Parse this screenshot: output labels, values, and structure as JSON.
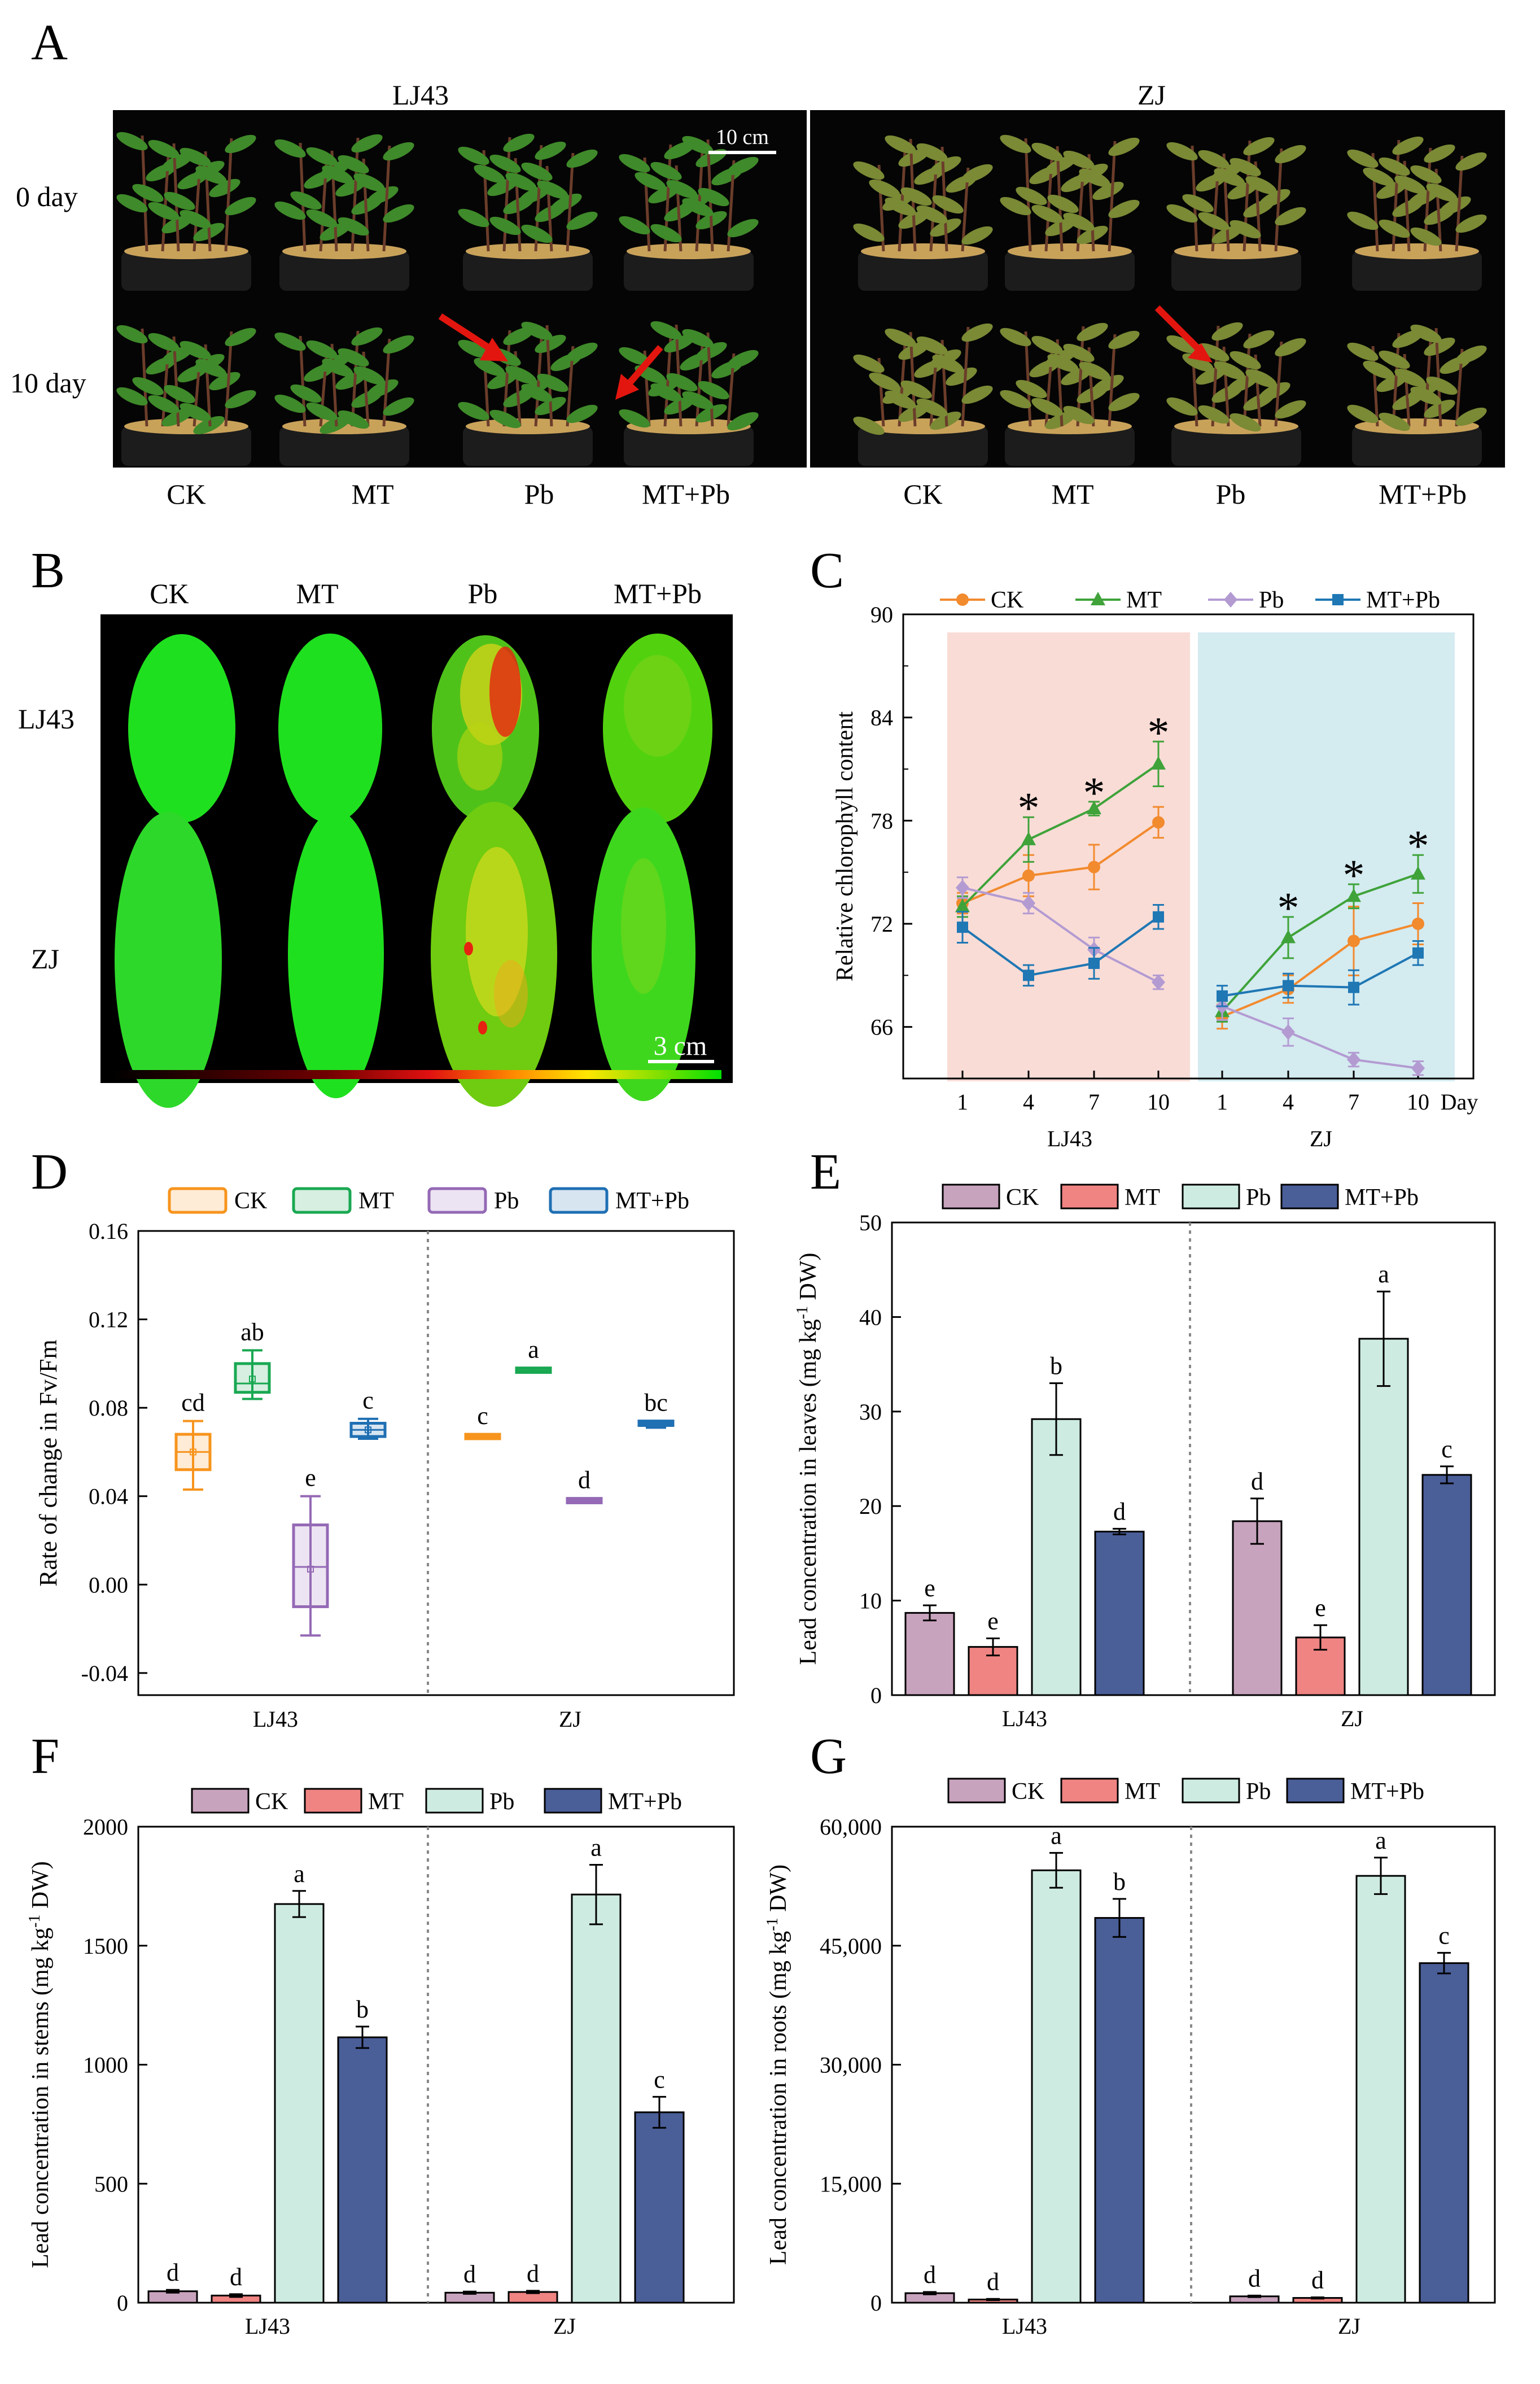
{
  "panel_letters": {
    "a": "A",
    "b": "B",
    "c": "C",
    "d": "D",
    "e": "E",
    "f": "F",
    "g": "G"
  },
  "panel_a": {
    "groups": [
      "LJ43",
      "ZJ"
    ],
    "rows": [
      "0 day",
      "10 day"
    ],
    "treatments": [
      "CK",
      "MT",
      "Pb",
      "MT+Pb"
    ],
    "scale_bar": "10 cm"
  },
  "panel_b": {
    "treatments": [
      "CK",
      "MT",
      "Pb",
      "MT+Pb"
    ],
    "rows": [
      "LJ43",
      "ZJ"
    ],
    "scale_bar": "3 cm"
  },
  "colors": {
    "ck": "#c8a3bd",
    "mt": "#ef8482",
    "pb": "#cdebe1",
    "mtpb": "#4a5e98",
    "line_ck": "#f28a2e",
    "line_mt": "#3fa33a",
    "line_pb": "#b39bd2",
    "line_mtpb": "#1f77b4",
    "box_ck": "#f7941d",
    "box_mt": "#19a852",
    "box_pb": "#9469b5",
    "box_mtpb": "#1f6fb3",
    "shade_lj43": "#f9dcd6",
    "shade_zj": "#d4ebf0"
  },
  "chart_data": [
    {
      "id": "C",
      "type": "line",
      "ylabel": "Relative chlorophyll content",
      "xlabel": "Day",
      "ylim": [
        63,
        90
      ],
      "yticks": [
        66,
        72,
        78,
        84,
        90
      ],
      "groups": [
        "LJ43",
        "ZJ"
      ],
      "x": [
        1,
        4,
        7,
        10
      ],
      "significance": "*",
      "legend": [
        "CK",
        "MT",
        "Pb",
        "MT+Pb"
      ],
      "series": [
        {
          "name": "CK",
          "LJ43": [
            73.2,
            74.8,
            75.3,
            77.9
          ],
          "LJ43_err": [
            0.6,
            1.2,
            1.3,
            0.9
          ],
          "ZJ": [
            66.6,
            68.2,
            71.0,
            72.0
          ],
          "ZJ_err": [
            0.7,
            0.8,
            2.0,
            1.2
          ]
        },
        {
          "name": "MT",
          "LJ43": [
            73.0,
            76.9,
            78.7,
            81.3
          ],
          "LJ43_err": [
            0.6,
            1.3,
            0.4,
            1.3
          ],
          "ZJ": [
            66.9,
            71.2,
            73.6,
            74.9
          ],
          "ZJ_err": [
            0.6,
            1.2,
            0.7,
            1.1
          ]
        },
        {
          "name": "Pb",
          "LJ43": [
            74.1,
            73.2,
            70.5,
            68.6
          ],
          "LJ43_err": [
            0.6,
            0.6,
            0.7,
            0.4
          ],
          "ZJ": [
            67.2,
            65.7,
            64.1,
            63.6
          ],
          "ZJ_err": [
            0.8,
            0.8,
            0.4,
            0.4
          ]
        },
        {
          "name": "MT+Pb",
          "LJ43": [
            71.8,
            69.0,
            69.7,
            72.4
          ],
          "LJ43_err": [
            0.9,
            0.6,
            0.9,
            0.7
          ],
          "ZJ": [
            67.8,
            68.4,
            68.3,
            70.3
          ],
          "ZJ_err": [
            0.6,
            0.7,
            1.0,
            0.7
          ]
        }
      ],
      "significant_points": {
        "LJ43": [
          4,
          7,
          10
        ],
        "ZJ": [
          4,
          7,
          10
        ]
      }
    },
    {
      "id": "D",
      "type": "box",
      "ylabel": "Rate of change in Fv/Fm",
      "ylim": [
        -0.05,
        0.16
      ],
      "yticks": [
        -0.04,
        0.0,
        0.04,
        0.08,
        0.12,
        0.16
      ],
      "ytick_labels": [
        "-0.04",
        "0.00",
        "0.04",
        "0.08",
        "0.12",
        "0.16"
      ],
      "groups": [
        "LJ43",
        "ZJ"
      ],
      "legend": [
        "CK",
        "MT",
        "Pb",
        "MT+Pb"
      ],
      "boxes": [
        {
          "group": "LJ43",
          "name": "CK",
          "min": 0.043,
          "q1": 0.052,
          "median": 0.06,
          "q3": 0.068,
          "max": 0.074,
          "mean": 0.06,
          "letter": "cd"
        },
        {
          "group": "LJ43",
          "name": "MT",
          "min": 0.084,
          "q1": 0.087,
          "median": 0.091,
          "q3": 0.1,
          "max": 0.106,
          "mean": 0.093,
          "letter": "ab"
        },
        {
          "group": "LJ43",
          "name": "Pb",
          "min": -0.023,
          "q1": -0.01,
          "median": 0.008,
          "q3": 0.027,
          "max": 0.04,
          "mean": 0.007,
          "letter": "e"
        },
        {
          "group": "LJ43",
          "name": "MT+Pb",
          "min": 0.066,
          "q1": 0.067,
          "median": 0.07,
          "q3": 0.073,
          "max": 0.075,
          "mean": 0.07,
          "letter": "c"
        },
        {
          "group": "ZJ",
          "name": "CK",
          "min": 0.066,
          "q1": 0.066,
          "median": 0.067,
          "q3": 0.068,
          "max": 0.068,
          "mean": 0.067,
          "letter": "c"
        },
        {
          "group": "ZJ",
          "name": "MT",
          "min": 0.096,
          "q1": 0.096,
          "median": 0.097,
          "q3": 0.098,
          "max": 0.098,
          "mean": 0.097,
          "letter": "a"
        },
        {
          "group": "ZJ",
          "name": "Pb",
          "min": 0.037,
          "q1": 0.037,
          "median": 0.038,
          "q3": 0.039,
          "max": 0.039,
          "mean": 0.038,
          "letter": "d"
        },
        {
          "group": "ZJ",
          "name": "MT+Pb",
          "min": 0.071,
          "q1": 0.072,
          "median": 0.073,
          "q3": 0.074,
          "max": 0.074,
          "mean": 0.073,
          "letter": "bc"
        }
      ]
    },
    {
      "id": "E",
      "type": "bar",
      "ylabel_main": "Lead concentration in leaves (mg kg",
      "ylabel_sup": "-1",
      "ylabel_end": " DW)",
      "ylim": [
        0,
        50
      ],
      "yticks": [
        0,
        10,
        20,
        30,
        40,
        50
      ],
      "ytick_labels": [
        "0",
        "10",
        "20",
        "30",
        "40",
        "50"
      ],
      "categories": [
        "LJ43",
        "ZJ"
      ],
      "legend": [
        "CK",
        "MT",
        "Pb",
        "MT+Pb"
      ],
      "series": [
        {
          "name": "CK",
          "values": [
            8.7,
            18.4
          ],
          "errors": [
            0.8,
            2.4
          ],
          "letters": [
            "e",
            "d"
          ]
        },
        {
          "name": "MT",
          "values": [
            5.1,
            6.1
          ],
          "errors": [
            0.9,
            1.3
          ],
          "letters": [
            "e",
            "e"
          ]
        },
        {
          "name": "Pb",
          "values": [
            29.2,
            37.7
          ],
          "errors": [
            3.8,
            5.0
          ],
          "letters": [
            "b",
            "a"
          ]
        },
        {
          "name": "MT+Pb",
          "values": [
            17.3,
            23.3
          ],
          "errors": [
            0.3,
            0.9
          ],
          "letters": [
            "d",
            "c"
          ]
        }
      ]
    },
    {
      "id": "F",
      "type": "bar",
      "ylabel_main": "Lead concentration in stems (mg kg",
      "ylabel_sup": "-1",
      "ylabel_end": " DW)",
      "ylim": [
        0,
        2000
      ],
      "yticks": [
        0,
        500,
        1000,
        1500,
        2000
      ],
      "ytick_labels": [
        "0",
        "500",
        "1000",
        "1500",
        "2000"
      ],
      "categories": [
        "LJ43",
        "ZJ"
      ],
      "legend": [
        "CK",
        "MT",
        "Pb",
        "MT+Pb"
      ],
      "series": [
        {
          "name": "CK",
          "values": [
            48,
            42
          ],
          "errors": [
            6,
            5
          ],
          "letters": [
            "d",
            "d"
          ]
        },
        {
          "name": "MT",
          "values": [
            30,
            45
          ],
          "errors": [
            6,
            5
          ],
          "letters": [
            "d",
            "d"
          ]
        },
        {
          "name": "Pb",
          "values": [
            1675,
            1715
          ],
          "errors": [
            55,
            125
          ],
          "letters": [
            "a",
            "a"
          ]
        },
        {
          "name": "MT+Pb",
          "values": [
            1115,
            800
          ],
          "errors": [
            45,
            65
          ],
          "letters": [
            "b",
            "c"
          ]
        }
      ]
    },
    {
      "id": "G",
      "type": "bar",
      "ylabel_main": "Lead concentration in roots (mg kg",
      "ylabel_sup": "-1",
      "ylabel_end": " DW)",
      "ylim": [
        0,
        60000
      ],
      "yticks": [
        0,
        15000,
        30000,
        45000,
        60000
      ],
      "ytick_labels": [
        "0",
        "15,000",
        "30,000",
        "45,000",
        "60,000"
      ],
      "categories": [
        "LJ43",
        "ZJ"
      ],
      "legend": [
        "CK",
        "MT",
        "Pb",
        "MT+Pb"
      ],
      "series": [
        {
          "name": "CK",
          "values": [
            1200,
            800
          ],
          "errors": [
            150,
            100
          ],
          "letters": [
            "d",
            "d"
          ]
        },
        {
          "name": "MT",
          "values": [
            400,
            600
          ],
          "errors": [
            80,
            80
          ],
          "letters": [
            "d",
            "d"
          ]
        },
        {
          "name": "Pb",
          "values": [
            54500,
            53800
          ],
          "errors": [
            2200,
            2300
          ],
          "letters": [
            "a",
            "a"
          ]
        },
        {
          "name": "MT+Pb",
          "values": [
            48500,
            42800
          ],
          "errors": [
            2400,
            1300
          ],
          "letters": [
            "b",
            "c"
          ]
        }
      ]
    }
  ]
}
